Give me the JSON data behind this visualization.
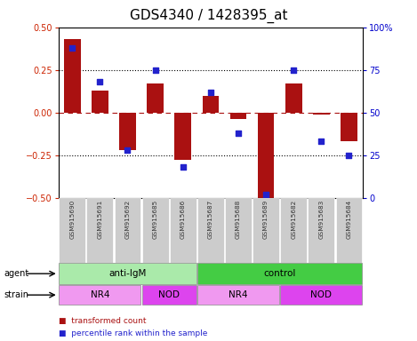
{
  "title": "GDS4340 / 1428395_at",
  "samples": [
    "GSM915690",
    "GSM915691",
    "GSM915692",
    "GSM915685",
    "GSM915686",
    "GSM915687",
    "GSM915688",
    "GSM915689",
    "GSM915682",
    "GSM915683",
    "GSM915684"
  ],
  "bar_values": [
    0.43,
    0.13,
    -0.22,
    0.17,
    -0.28,
    0.1,
    -0.04,
    -0.5,
    0.17,
    -0.01,
    -0.17
  ],
  "dot_values": [
    88,
    68,
    28,
    75,
    18,
    62,
    38,
    2,
    75,
    33,
    25
  ],
  "bar_color": "#aa1111",
  "dot_color": "#2222cc",
  "ylim_left": [
    -0.5,
    0.5
  ],
  "ylim_right": [
    0,
    100
  ],
  "yticks_left": [
    -0.5,
    -0.25,
    0,
    0.25,
    0.5
  ],
  "yticks_right": [
    0,
    25,
    50,
    75,
    100
  ],
  "hlines": [
    0.25,
    0.0,
    -0.25
  ],
  "hline_styles": [
    "dotted",
    "dashed_red",
    "dotted"
  ],
  "agent_groups": [
    {
      "label": "anti-IgM",
      "start": 0,
      "end": 5,
      "color": "#aaeaaa"
    },
    {
      "label": "control",
      "start": 5,
      "end": 11,
      "color": "#44cc44"
    }
  ],
  "strain_groups": [
    {
      "label": "NR4",
      "start": 0,
      "end": 3,
      "color": "#f099f0"
    },
    {
      "label": "NOD",
      "start": 3,
      "end": 5,
      "color": "#dd44ee"
    },
    {
      "label": "NR4",
      "start": 5,
      "end": 8,
      "color": "#f099f0"
    },
    {
      "label": "NOD",
      "start": 8,
      "end": 11,
      "color": "#dd44ee"
    }
  ],
  "legend_items": [
    {
      "label": "transformed count",
      "color": "#aa1111"
    },
    {
      "label": "percentile rank within the sample",
      "color": "#2222cc"
    }
  ],
  "label_agent": "agent",
  "label_strain": "strain",
  "bg_color": "#ffffff",
  "tick_label_color_left": "#cc2200",
  "tick_label_color_right": "#0000cc",
  "title_fontsize": 11,
  "tick_fontsize": 7,
  "bar_width": 0.6,
  "sample_label_color": "#333333",
  "sample_box_color": "#cccccc"
}
